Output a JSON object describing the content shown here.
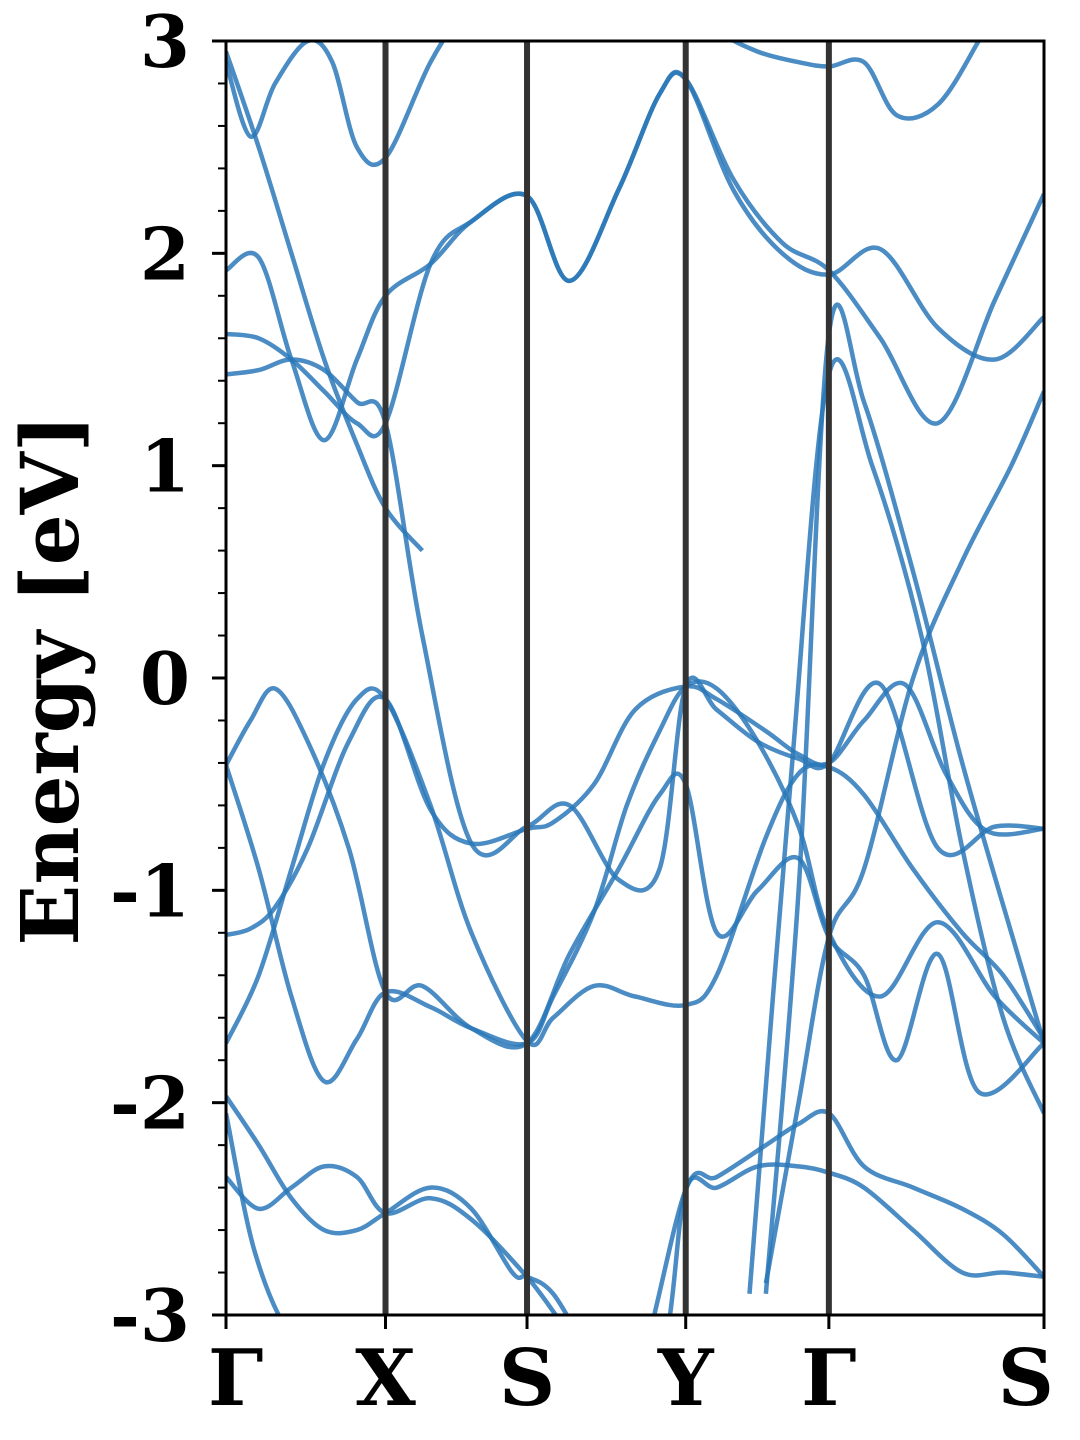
{
  "chart_data": {
    "type": "line",
    "title": "",
    "xlabel": "",
    "ylabel": "Energy [eV]",
    "ylim": [
      -3,
      3
    ],
    "yticks": [
      -3,
      -2,
      -1,
      0,
      1,
      2,
      3
    ],
    "ytick_labels": [
      "-3",
      "-2",
      "-1",
      "0",
      "1",
      "2",
      "3"
    ],
    "x_points": [
      {
        "label": "Γ",
        "x": 0
      },
      {
        "label": "X",
        "x": 0.195
      },
      {
        "label": "S",
        "x": 0.368
      },
      {
        "label": "Y",
        "x": 0.562
      },
      {
        "label": "Γ",
        "x": 0.737
      },
      {
        "label": "S",
        "x": 1.0
      }
    ],
    "grid": false,
    "colors": {
      "band": "#2a78b8",
      "kpoint_line": "#333333",
      "axes": "#000000"
    },
    "series": [
      {
        "x": [
          0,
          0.035,
          0.08,
          0.13,
          0.195,
          0.26,
          0.32,
          0.368,
          0.45,
          0.53,
          0.562,
          0.62,
          0.68,
          0.737,
          0.8,
          0.87,
          0.94,
          1.0
        ],
        "values": [
          -2.05,
          -2.7,
          -3.1,
          -3.2,
          -3.4,
          -3.4,
          -3.4,
          -3.4,
          -3.4,
          -3.4,
          -3.4,
          -3.4,
          -3.4,
          -3.4,
          -3.4,
          -3.4,
          -3.4,
          -3.4
        ]
      },
      {
        "x": [
          0,
          0.03,
          0.06,
          0.1,
          0.15,
          0.195,
          0.25,
          0.3,
          0.368,
          0.4,
          0.45,
          0.5,
          0.562,
          0.6,
          0.66,
          0.7,
          0.737,
          0.78,
          0.83,
          0.88,
          0.93,
          1.0
        ],
        "values": [
          -1.21,
          -1.18,
          -1.08,
          -0.8,
          -0.3,
          -0.1,
          -0.62,
          -0.78,
          -0.71,
          -0.68,
          -0.5,
          -0.15,
          -0.04,
          -0.1,
          -0.25,
          -0.36,
          -0.4,
          -0.2,
          -0.03,
          -0.45,
          -0.72,
          -0.71
        ]
      },
      {
        "x": [
          0,
          0.04,
          0.08,
          0.12,
          0.16,
          0.195,
          0.25,
          0.3,
          0.368,
          0.4,
          0.45,
          0.49,
          0.53,
          0.562,
          0.6,
          0.65,
          0.7,
          0.737,
          0.8,
          0.87,
          0.94,
          1.0
        ],
        "values": [
          -0.41,
          -0.9,
          -1.5,
          -1.9,
          -1.7,
          -1.48,
          -1.55,
          -1.65,
          -1.72,
          -1.5,
          -1.1,
          -0.6,
          -0.25,
          -0.04,
          -0.05,
          -0.3,
          -0.7,
          -1.2,
          -1.5,
          -1.15,
          -1.5,
          -1.72
        ]
      },
      {
        "x": [
          0,
          0.03,
          0.06,
          0.1,
          0.15,
          0.195,
          0.24,
          0.3,
          0.368,
          0.42,
          0.48,
          0.53,
          0.562,
          0.6,
          0.65,
          0.7,
          0.737,
          0.78,
          0.82,
          0.87,
          0.92,
          1.0
        ],
        "values": [
          -0.41,
          -0.2,
          -0.05,
          -0.3,
          -0.8,
          -1.48,
          -1.45,
          -1.65,
          -1.72,
          -1.3,
          -0.9,
          -0.55,
          -0.5,
          -1.2,
          -1.0,
          -0.85,
          -1.22,
          -1.4,
          -1.8,
          -1.3,
          -1.95,
          -1.72
        ]
      },
      {
        "x": [
          0,
          0.04,
          0.08,
          0.12,
          0.16,
          0.195,
          0.25,
          0.3,
          0.368,
          0.4,
          0.45,
          0.5,
          0.562,
          0.6,
          0.66,
          0.7,
          0.737,
          0.78,
          0.84,
          0.9,
          0.95,
          1.0
        ],
        "values": [
          -1.72,
          -1.4,
          -0.9,
          -0.4,
          -0.1,
          -0.1,
          -0.6,
          -1.2,
          -1.71,
          -1.6,
          -1.45,
          -1.5,
          -1.54,
          -1.4,
          -0.75,
          -0.45,
          -0.42,
          -0.55,
          -0.9,
          -1.2,
          -1.4,
          -1.7
        ]
      },
      {
        "x": [
          0,
          0.04,
          0.08,
          0.12,
          0.16,
          0.195,
          0.25,
          0.3,
          0.35,
          0.368,
          0.4,
          0.45,
          0.5,
          0.562,
          0.6,
          0.66,
          0.7,
          0.737,
          0.78,
          0.84,
          0.9,
          0.95,
          1.0
        ],
        "values": [
          -1.97,
          -2.2,
          -2.45,
          -2.6,
          -2.6,
          -2.52,
          -2.4,
          -2.5,
          -2.8,
          -2.82,
          -2.9,
          -3.2,
          -3.3,
          -2.41,
          -2.35,
          -2.2,
          -2.1,
          -2.05,
          -2.3,
          -2.4,
          -2.5,
          -2.62,
          -2.82
        ]
      },
      {
        "x": [
          0,
          0.04,
          0.08,
          0.12,
          0.16,
          0.195,
          0.25,
          0.3,
          0.368,
          0.45,
          0.53,
          0.562,
          0.6,
          0.65,
          0.7,
          0.737,
          0.78,
          0.84,
          0.9,
          0.95,
          1.0
        ],
        "values": [
          -2.35,
          -2.5,
          -2.4,
          -2.3,
          -2.35,
          -2.52,
          -2.45,
          -2.55,
          -2.82,
          -3.2,
          -3.2,
          -2.41,
          -2.4,
          -2.3,
          -2.3,
          -2.33,
          -2.4,
          -2.6,
          -2.8,
          -2.8,
          -2.82
        ]
      },
      {
        "x": [
          0,
          0.04,
          0.08,
          0.12,
          0.16,
          0.195,
          0.24,
          0.3,
          0.368,
          0.42,
          0.48,
          0.53,
          0.562,
          0.6,
          0.65,
          0.7,
          0.737,
          0.8,
          0.87,
          0.94,
          1.0
        ],
        "values": [
          1.43,
          1.45,
          1.5,
          1.45,
          1.3,
          1.2,
          0.2,
          -0.78,
          -0.7,
          -0.6,
          -0.95,
          -0.9,
          -0.04,
          -0.15,
          -0.3,
          -0.38,
          -0.4,
          -0.03,
          -0.8,
          -0.7,
          -0.71
        ]
      },
      {
        "x": [
          0,
          0.04,
          0.08,
          0.12,
          0.16,
          0.195,
          0.25,
          0.3,
          0.368,
          0.42,
          0.48,
          0.53,
          0.562,
          0.62,
          0.68,
          0.737,
          0.8,
          0.87,
          0.94,
          1.0
        ],
        "values": [
          1.62,
          1.6,
          1.5,
          1.35,
          1.2,
          1.2,
          1.95,
          2.15,
          2.27,
          1.87,
          2.3,
          2.75,
          2.82,
          2.3,
          2.0,
          1.9,
          2.02,
          1.65,
          1.5,
          1.7
        ]
      },
      {
        "x": [
          0,
          0.04,
          0.08,
          0.12,
          0.16,
          0.195,
          0.25,
          0.3,
          0.368,
          0.42,
          0.48,
          0.53,
          0.562,
          0.62,
          0.68,
          0.737,
          0.8,
          0.87,
          0.94,
          1.0
        ],
        "values": [
          1.92,
          1.98,
          1.5,
          1.12,
          1.5,
          1.8,
          1.95,
          2.15,
          2.27,
          1.87,
          2.3,
          2.75,
          2.82,
          2.35,
          2.05,
          1.92,
          1.6,
          1.2,
          1.78,
          2.28
        ]
      },
      {
        "x": [
          0,
          0.03,
          0.06,
          0.1,
          0.13,
          0.16,
          0.195,
          0.25,
          0.3,
          0.34
        ],
        "values": [
          2.9,
          2.55,
          2.8,
          3.0,
          2.9,
          2.5,
          2.45,
          2.9,
          3.2,
          3.4
        ]
      },
      {
        "x": [
          0,
          0.04,
          0.08,
          0.12,
          0.16,
          0.195,
          0.24
        ],
        "values": [
          2.95,
          2.5,
          2.0,
          1.5,
          1.1,
          0.8,
          0.6
        ]
      },
      {
        "x": [
          0.56,
          0.6,
          0.65,
          0.7,
          0.737,
          0.78,
          0.82,
          0.87,
          0.92,
          0.96
        ],
        "values": [
          3.2,
          3.05,
          2.95,
          2.9,
          2.88,
          2.9,
          2.65,
          2.7,
          3.0,
          3.3
        ]
      },
      {
        "x": [
          0.66,
          0.7,
          0.737,
          0.78,
          0.84,
          0.9,
          0.96,
          1.0
        ],
        "values": [
          -2.85,
          -2.0,
          -1.22,
          -0.9,
          0.0,
          0.55,
          1.0,
          1.35
        ]
      },
      {
        "x": [
          0.66,
          0.7,
          0.737,
          0.78,
          0.84,
          0.9,
          0.96,
          1.0
        ],
        "values": [
          -2.9,
          -1.0,
          1.62,
          1.3,
          0.5,
          -0.4,
          -1.2,
          -1.72
        ]
      },
      {
        "x": [
          0.64,
          0.69,
          0.737,
          0.79,
          0.85,
          0.9,
          0.95,
          1.0
        ],
        "values": [
          -2.9,
          -0.5,
          1.43,
          1.0,
          0.2,
          -0.8,
          -1.6,
          -2.05
        ]
      }
    ]
  }
}
